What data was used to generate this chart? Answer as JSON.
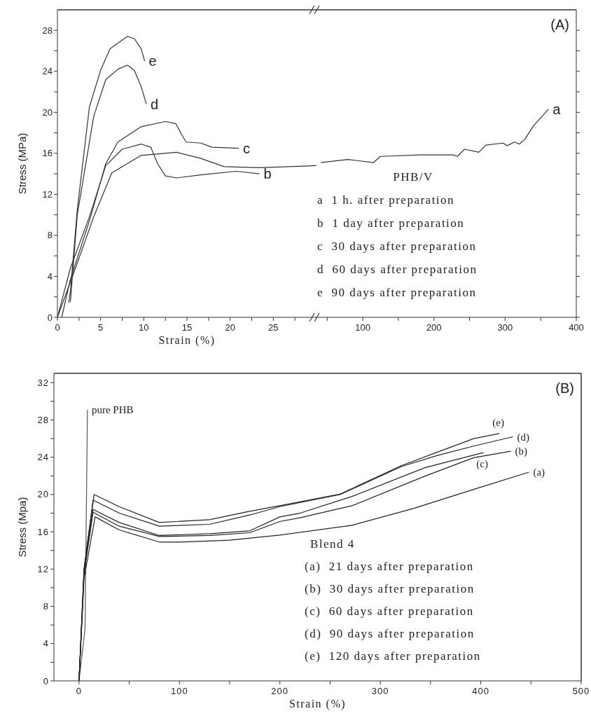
{
  "chart_data": [
    {
      "type": "line",
      "ylabel": "Stress (MPa)",
      "xlabel": "Strain (%)",
      "xlim": [
        0,
        30
      ],
      "ylim": [
        0,
        30
      ],
      "xticks": [
        0,
        {
          "value": 2.5,
          "label": null
        },
        5,
        {
          "value": 7.5,
          "label": null
        },
        10,
        {
          "value": 12.5,
          "label": null
        },
        15,
        {
          "value": 17.5,
          "label": null
        },
        20,
        {
          "value": 22.5,
          "label": null
        },
        25,
        {
          "value": 27.5,
          "label": null
        }
      ],
      "yticks": [
        0,
        {
          "value": 2,
          "label": null
        },
        4,
        {
          "value": 6,
          "label": null
        },
        8,
        {
          "value": 10,
          "label": null
        },
        12,
        {
          "value": 14,
          "label": null
        },
        16,
        {
          "value": 18,
          "label": null
        },
        20,
        {
          "value": 22,
          "label": null
        },
        24,
        {
          "value": 26,
          "label": null
        },
        28
      ],
      "series": [
        {
          "color": "#333333",
          "x": [
            0,
            2.3,
            4.2,
            6.3,
            9.7,
            13.8,
            16.6,
            19.3,
            23.4,
            28.6,
            30
          ],
          "values": [
            0,
            5.3,
            9.8,
            14.1,
            15.8,
            16.1,
            15.5,
            14.7,
            14.6,
            14.75,
            14.8
          ]
        },
        {
          "name": "b",
          "color": "#333333",
          "x": [
            0,
            1.5,
            3.7,
            5.6,
            7.5,
            9.7,
            10.8,
            11.6,
            12.5,
            13.8,
            16.6,
            20.7,
            23.4
          ],
          "values": [
            0,
            4.8,
            9.8,
            14.8,
            16.4,
            16.9,
            16.6,
            15.0,
            13.8,
            13.6,
            13.9,
            14.25,
            14.0
          ]
        },
        {
          "name": "c",
          "color": "#333333",
          "x": [
            0.5,
            1.5,
            3.7,
            5.6,
            7,
            9.7,
            12.5,
            13.7,
            14.4,
            14.9,
            16.6,
            17.9,
            21
          ],
          "values": [
            0,
            3.7,
            9.4,
            15.0,
            17.1,
            18.6,
            19.1,
            18.9,
            17.8,
            17.1,
            17.0,
            16.6,
            16.5
          ]
        },
        {
          "name": "d",
          "color": "#333333",
          "x": [
            1.5,
            2.3,
            4.2,
            5.6,
            7,
            8.1,
            8.9,
            9.7,
            10.3
          ],
          "values": [
            1.5,
            10.0,
            19.6,
            23.2,
            24.2,
            24.6,
            24.1,
            22.5,
            20.8
          ]
        },
        {
          "name": "e",
          "color": "#333333",
          "x": [
            1.3,
            1.5,
            2.3,
            3.7,
            5,
            6.1,
            8.1,
            8.9,
            9.7,
            10.1
          ],
          "values": [
            1.4,
            2.5,
            10.5,
            20.5,
            24.1,
            26.2,
            27.4,
            27.2,
            26.2,
            25.0
          ]
        }
      ]
    },
    {
      "type": "line",
      "tick_labels": "x",
      "xlim": [
        35,
        400
      ],
      "ylim": [
        0,
        30
      ],
      "xticks": [
        {
          "value": 50,
          "label": null
        },
        100,
        {
          "value": 150,
          "label": null
        },
        200,
        {
          "value": 250,
          "label": null
        },
        300,
        {
          "value": 350,
          "label": null
        },
        400
      ],
      "yticks": [
        0,
        {
          "value": 2,
          "label": null
        },
        4,
        {
          "value": 6,
          "label": null
        },
        8,
        {
          "value": 10,
          "label": null
        },
        12,
        {
          "value": 14,
          "label": null
        },
        16,
        {
          "value": 18,
          "label": null
        },
        20,
        {
          "value": 22,
          "label": null
        },
        24,
        {
          "value": 26,
          "label": null
        },
        28
      ],
      "annotations": [
        "(A)",
        "PHB/V",
        "a  1 h. after preparation",
        "b  1 day after preparation",
        "c  30 days after preparation",
        "d  60 days after preparation",
        "e  90 days after preparation"
      ],
      "series": [
        {
          "name": "a",
          "color": "#333333",
          "x": [
            41,
            79,
            115,
            125,
            181,
            227,
            233,
            243,
            263,
            273,
            297,
            303,
            313,
            320,
            328,
            340,
            361
          ],
          "values": [
            15.1,
            15.4,
            15.1,
            15.7,
            15.85,
            15.85,
            15.7,
            16.4,
            16.1,
            16.8,
            17.0,
            16.75,
            17.1,
            16.9,
            17.4,
            18.7,
            20.3
          ]
        }
      ]
    },
    {
      "type": "line",
      "ylabel": "Stress (Mpa)",
      "xlabel": "Strain (%)",
      "xlim": [
        -25,
        500
      ],
      "ylim": [
        0,
        33
      ],
      "xticks": [
        0,
        {
          "value": 50,
          "label": null
        },
        100,
        {
          "value": 150,
          "label": null
        },
        200,
        {
          "value": 250,
          "label": null
        },
        300,
        {
          "value": 350,
          "label": null
        },
        400,
        {
          "value": 450,
          "label": null
        },
        500
      ],
      "yticks": [
        0,
        {
          "value": 2,
          "label": null
        },
        4,
        {
          "value": 6,
          "label": null
        },
        8,
        {
          "value": 10,
          "label": null
        },
        12,
        {
          "value": 14,
          "label": null
        },
        16,
        {
          "value": 18,
          "label": null
        },
        20,
        {
          "value": 22,
          "label": null
        },
        24,
        {
          "value": 26,
          "label": null
        },
        28,
        {
          "value": 30,
          "label": null
        },
        32
      ],
      "annotations": [
        "(B)",
        "Blend 4",
        "(a)  21 days after preparation",
        "(b)  30 days after preparation",
        "(c)  60 days after preparation",
        "(d)  90 days after preparation",
        "(e)  120 days after preparation"
      ],
      "series": [
        {
          "name": "pure PHB",
          "color": "#555555",
          "x": [
            0,
            6,
            7.7,
            8.4
          ],
          "values": [
            0,
            5.6,
            22.4,
            29.1
          ]
        },
        {
          "name": "(a)",
          "color": "#222222",
          "x": [
            0,
            5,
            16,
            40,
            80,
            100,
            150,
            200,
            272,
            333,
            393,
            448
          ],
          "values": [
            0,
            11,
            17.6,
            16.2,
            14.9,
            14.9,
            15.1,
            15.65,
            16.7,
            18.5,
            20.55,
            22.4
          ]
        },
        {
          "name": "(b)",
          "color": "#222222",
          "x": [
            0,
            5,
            14,
            40,
            80,
            130,
            170,
            200,
            220,
            272,
            345,
            393,
            430
          ],
          "values": [
            0,
            11.5,
            18.1,
            16.6,
            15.5,
            15.6,
            15.9,
            17.1,
            17.5,
            18.8,
            22.0,
            23.95,
            24.65
          ]
        },
        {
          "name": "(c)",
          "color": "#222222",
          "x": [
            0,
            5,
            14,
            40,
            80,
            130,
            170,
            200,
            220,
            272,
            345,
            402.6
          ],
          "values": [
            0,
            11.8,
            18.4,
            17.0,
            15.6,
            15.8,
            16.1,
            17.6,
            18.0,
            19.8,
            22.9,
            24.5
          ]
        },
        {
          "name": "(d)",
          "color": "#222222",
          "x": [
            0,
            5,
            14,
            40,
            80,
            130,
            170,
            200,
            260,
            321,
            357,
            393,
            432
          ],
          "values": [
            0,
            12,
            19.4,
            18.0,
            16.6,
            16.8,
            17.8,
            18.7,
            20.0,
            23.0,
            24.2,
            25.2,
            26.2
          ]
        },
        {
          "name": "(e)",
          "color": "#222222",
          "x": [
            0,
            5,
            15,
            40,
            80,
            130,
            170,
            200,
            260,
            321,
            357,
            393,
            418.6
          ],
          "values": [
            0,
            12,
            20.0,
            18.7,
            17.0,
            17.3,
            18.2,
            18.8,
            20.05,
            23.1,
            24.55,
            26.0,
            26.55
          ]
        }
      ]
    }
  ]
}
